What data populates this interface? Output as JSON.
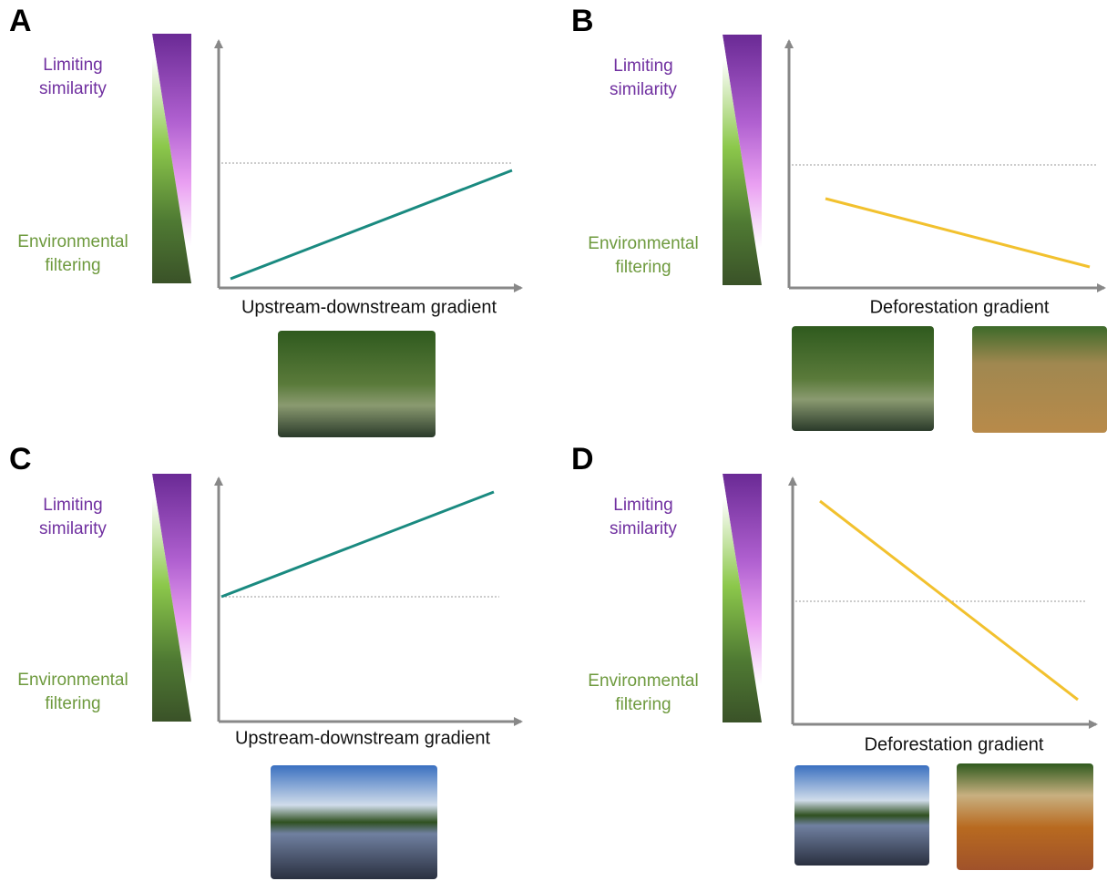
{
  "panels": [
    {
      "label": "A",
      "top_label": [
        "Limiting",
        "similarity"
      ],
      "bottom_label": [
        "Environmental",
        "filtering"
      ],
      "x_label": "Upstream-downstream gradient"
    },
    {
      "label": "B",
      "top_label": [
        "Limiting",
        "similarity"
      ],
      "bottom_label": [
        "Environmental",
        "filtering"
      ],
      "x_label": "Deforestation gradient"
    },
    {
      "label": "C",
      "top_label": [
        "Limiting",
        "similarity"
      ],
      "bottom_label": [
        "Environmental",
        "filtering"
      ],
      "x_label": "Upstream-downstream gradient"
    },
    {
      "label": "D",
      "top_label": [
        "Limiting",
        "similarity"
      ],
      "bottom_label": [
        "Environmental",
        "filtering"
      ],
      "x_label": "Deforestation gradient"
    }
  ]
}
